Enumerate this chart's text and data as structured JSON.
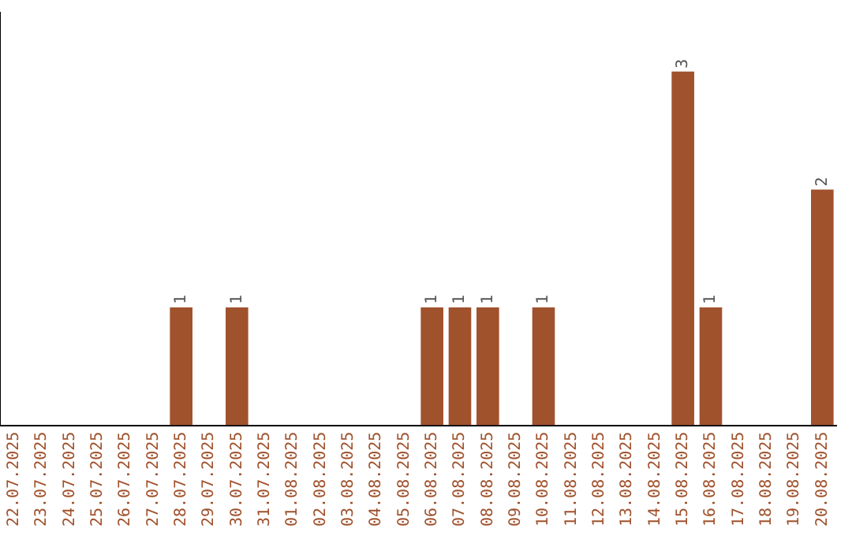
{
  "chart_data": {
    "type": "bar",
    "categories": [
      "22.07.2025",
      "23.07.2025",
      "24.07.2025",
      "25.07.2025",
      "26.07.2025",
      "27.07.2025",
      "28.07.2025",
      "29.07.2025",
      "30.07.2025",
      "31.07.2025",
      "01.08.2025",
      "02.08.2025",
      "03.08.2025",
      "04.08.2025",
      "05.08.2025",
      "06.08.2025",
      "07.08.2025",
      "08.08.2025",
      "09.08.2025",
      "10.08.2025",
      "11.08.2025",
      "12.08.2025",
      "13.08.2025",
      "14.08.2025",
      "15.08.2025",
      "16.08.2025",
      "17.08.2025",
      "18.08.2025",
      "19.08.2025",
      "20.08.2025"
    ],
    "values": [
      0,
      0,
      0,
      0,
      0,
      0,
      1,
      0,
      1,
      0,
      0,
      0,
      0,
      0,
      0,
      1,
      1,
      1,
      0,
      1,
      0,
      0,
      0,
      0,
      3,
      1,
      0,
      0,
      0,
      2
    ],
    "value_labels": [
      null,
      null,
      null,
      null,
      null,
      null,
      "1",
      null,
      "1",
      null,
      null,
      null,
      null,
      null,
      null,
      "1",
      "1",
      "1",
      null,
      "1",
      null,
      null,
      null,
      null,
      "3",
      "1",
      null,
      null,
      null,
      "2"
    ],
    "color": "#a0522d",
    "grid": false,
    "legend": false,
    "tick_labels": "x"
  }
}
